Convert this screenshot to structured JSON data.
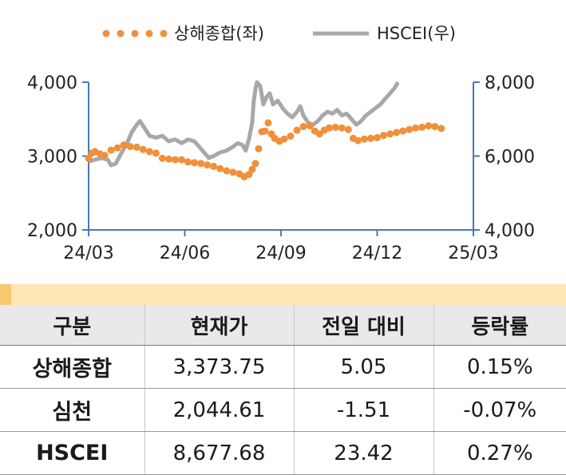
{
  "chart_data": {
    "type": "line",
    "title": "",
    "legend": {
      "position": "top",
      "entries": [
        "상해종합(좌)",
        "HSCEI(우)"
      ]
    },
    "x_ticks": [
      "24/03",
      "24/06",
      "24/09",
      "24/12",
      "25/03"
    ],
    "y_left": {
      "lim": [
        2000,
        4000
      ],
      "ticks": [
        "2,000",
        "3,000",
        "4,000"
      ]
    },
    "y_right": {
      "lim": [
        4000,
        8000
      ],
      "ticks": [
        "4,000",
        "6,000",
        "8,000"
      ]
    },
    "series": [
      {
        "name": "상해종합(좌)",
        "axis": "left",
        "style": "dotted",
        "color": "#f0903a",
        "points": [
          [
            0.0,
            2970
          ],
          [
            0.1,
            3040
          ],
          [
            0.2,
            3060
          ],
          [
            0.35,
            3030
          ],
          [
            0.5,
            3010
          ],
          [
            0.7,
            3080
          ],
          [
            0.9,
            3110
          ],
          [
            1.1,
            3150
          ],
          [
            1.3,
            3130
          ],
          [
            1.5,
            3120
          ],
          [
            1.7,
            3090
          ],
          [
            1.9,
            3060
          ],
          [
            2.1,
            3040
          ],
          [
            2.3,
            2970
          ],
          [
            2.5,
            2960
          ],
          [
            2.7,
            2950
          ],
          [
            2.9,
            2950
          ],
          [
            3.1,
            2920
          ],
          [
            3.3,
            2910
          ],
          [
            3.5,
            2900
          ],
          [
            3.7,
            2880
          ],
          [
            3.9,
            2860
          ],
          [
            4.1,
            2830
          ],
          [
            4.3,
            2800
          ],
          [
            4.5,
            2780
          ],
          [
            4.7,
            2760
          ],
          [
            4.85,
            2720
          ],
          [
            5.0,
            2750
          ],
          [
            5.1,
            2820
          ],
          [
            5.2,
            2900
          ],
          [
            5.3,
            3100
          ],
          [
            5.4,
            3330
          ],
          [
            5.5,
            3340
          ],
          [
            5.6,
            3450
          ],
          [
            5.7,
            3300
          ],
          [
            5.8,
            3240
          ],
          [
            5.95,
            3200
          ],
          [
            6.1,
            3230
          ],
          [
            6.3,
            3270
          ],
          [
            6.5,
            3350
          ],
          [
            6.7,
            3400
          ],
          [
            6.9,
            3410
          ],
          [
            7.05,
            3340
          ],
          [
            7.2,
            3300
          ],
          [
            7.35,
            3350
          ],
          [
            7.5,
            3380
          ],
          [
            7.7,
            3390
          ],
          [
            7.9,
            3380
          ],
          [
            8.1,
            3360
          ],
          [
            8.25,
            3240
          ],
          [
            8.4,
            3210
          ],
          [
            8.6,
            3230
          ],
          [
            8.8,
            3240
          ],
          [
            9.0,
            3250
          ],
          [
            9.2,
            3280
          ],
          [
            9.4,
            3300
          ],
          [
            9.6,
            3320
          ],
          [
            9.8,
            3340
          ],
          [
            10.0,
            3360
          ],
          [
            10.2,
            3380
          ],
          [
            10.4,
            3390
          ],
          [
            10.6,
            3410
          ],
          [
            10.8,
            3400
          ],
          [
            11.0,
            3374
          ]
        ]
      },
      {
        "name": "HSCEI(우)",
        "axis": "right",
        "style": "solid",
        "color": "#a8a8a8",
        "points": [
          [
            0.0,
            5850
          ],
          [
            0.2,
            5900
          ],
          [
            0.4,
            5950
          ],
          [
            0.6,
            5900
          ],
          [
            0.7,
            5750
          ],
          [
            0.85,
            5800
          ],
          [
            1.0,
            6050
          ],
          [
            1.2,
            6350
          ],
          [
            1.35,
            6650
          ],
          [
            1.5,
            6850
          ],
          [
            1.6,
            6950
          ],
          [
            1.75,
            6750
          ],
          [
            1.9,
            6550
          ],
          [
            2.1,
            6500
          ],
          [
            2.3,
            6550
          ],
          [
            2.5,
            6400
          ],
          [
            2.7,
            6450
          ],
          [
            2.9,
            6350
          ],
          [
            3.1,
            6450
          ],
          [
            3.3,
            6400
          ],
          [
            3.45,
            6250
          ],
          [
            3.6,
            6100
          ],
          [
            3.75,
            5950
          ],
          [
            3.9,
            6000
          ],
          [
            4.1,
            6100
          ],
          [
            4.3,
            6150
          ],
          [
            4.5,
            6250
          ],
          [
            4.65,
            6350
          ],
          [
            4.8,
            6300
          ],
          [
            4.9,
            6150
          ],
          [
            5.0,
            6450
          ],
          [
            5.1,
            6900
          ],
          [
            5.15,
            7500
          ],
          [
            5.2,
            7800
          ],
          [
            5.25,
            8000
          ],
          [
            5.35,
            7900
          ],
          [
            5.45,
            7400
          ],
          [
            5.55,
            7600
          ],
          [
            5.65,
            7700
          ],
          [
            5.75,
            7400
          ],
          [
            5.9,
            7500
          ],
          [
            6.05,
            7300
          ],
          [
            6.2,
            7150
          ],
          [
            6.35,
            7050
          ],
          [
            6.5,
            7200
          ],
          [
            6.6,
            7350
          ],
          [
            6.7,
            7100
          ],
          [
            6.85,
            6900
          ],
          [
            7.0,
            6850
          ],
          [
            7.15,
            6950
          ],
          [
            7.3,
            7100
          ],
          [
            7.45,
            7200
          ],
          [
            7.6,
            7150
          ],
          [
            7.75,
            7250
          ],
          [
            7.9,
            7100
          ],
          [
            8.05,
            7150
          ],
          [
            8.2,
            7000
          ],
          [
            8.35,
            6850
          ],
          [
            8.5,
            6950
          ],
          [
            8.65,
            7100
          ],
          [
            8.8,
            7200
          ],
          [
            8.95,
            7300
          ],
          [
            9.1,
            7400
          ],
          [
            9.25,
            7550
          ],
          [
            9.4,
            7700
          ],
          [
            9.55,
            7850
          ],
          [
            9.65,
            8000
          ]
        ]
      }
    ]
  },
  "table": {
    "headers": [
      "구분",
      "현재가",
      "전일 대비",
      "등락률"
    ],
    "rows": [
      [
        "상해종합",
        "3,373.75",
        "5.05",
        "0.15%"
      ],
      [
        "심천",
        "2,044.61",
        "-1.51",
        "-0.07%"
      ],
      [
        "HSCEI",
        "8,677.68",
        "23.42",
        "0.27%"
      ]
    ]
  }
}
